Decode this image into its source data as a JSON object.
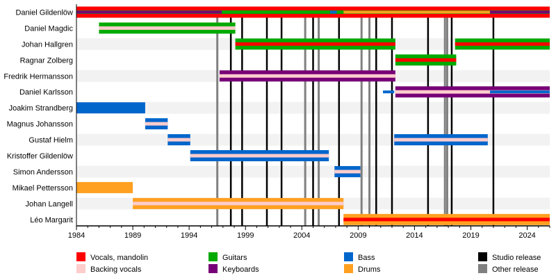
{
  "chart_data": {
    "type": "timeline",
    "xlim": [
      1984,
      2026.0
    ],
    "xticks": [
      1984,
      1989,
      1994,
      1999,
      2004,
      2009,
      2014,
      2019,
      2024
    ],
    "colors": {
      "vocals": "#ff0000",
      "backing": "#ffcccc",
      "guitars": "#00aa00",
      "keyboards": "#770077",
      "bass": "#0066cc",
      "drums": "#ffa020",
      "studio": "#000000",
      "other": "#808080"
    },
    "members": [
      {
        "name": "Daniel Gildenlöw",
        "bars": [
          {
            "from": 1984,
            "to": 2026,
            "main": "vocals",
            "inner": "guitars"
          },
          {
            "from": 1984,
            "to": 1996.9,
            "thin": "keyboards"
          },
          {
            "from": 2006.5,
            "to": 2007.1,
            "thin": "bass"
          },
          {
            "from": 2007.7,
            "to": 2020.7,
            "thin": "drums"
          },
          {
            "from": 2020.7,
            "to": 2026,
            "thin": "keyboards"
          }
        ]
      },
      {
        "name": "Daniel Magdic",
        "bars": [
          {
            "from": 1986.0,
            "to": 1998.1,
            "main": "guitars",
            "inner": "backing"
          }
        ]
      },
      {
        "name": "Johan Hallgren",
        "bars": [
          {
            "from": 1998.1,
            "to": 2012.3,
            "main": "guitars",
            "inner": "vocals"
          },
          {
            "from": 2017.6,
            "to": 2026,
            "main": "guitars",
            "inner": "vocals"
          }
        ]
      },
      {
        "name": "Ragnar Zolberg",
        "bars": [
          {
            "from": 2012.3,
            "to": 2017.7,
            "main": "guitars",
            "inner": "vocals"
          }
        ]
      },
      {
        "name": "Fredrik Hermansson",
        "bars": [
          {
            "from": 1996.7,
            "to": 2012.3,
            "main": "keyboards",
            "inner": "backing"
          }
        ]
      },
      {
        "name": "Daniel Karlsson",
        "bars": [
          {
            "from": 2011.2,
            "to": 2012.2,
            "thin": "bass"
          },
          {
            "from": 2012.3,
            "to": 2026,
            "main": "keyboards",
            "inner": "backing"
          },
          {
            "from": 2020.7,
            "to": 2026,
            "thin": "bass"
          }
        ]
      },
      {
        "name": "Joakim Strandberg",
        "bars": [
          {
            "from": 1984,
            "to": 1990.1,
            "main": "bass"
          }
        ]
      },
      {
        "name": "Magnus Johansson",
        "bars": [
          {
            "from": 1990.1,
            "to": 1992.1,
            "main": "bass",
            "inner": "backing"
          }
        ]
      },
      {
        "name": "Gustaf Hielm",
        "bars": [
          {
            "from": 1992.1,
            "to": 1994.1,
            "main": "bass",
            "inner": "backing"
          },
          {
            "from": 2012.2,
            "to": 2020.5,
            "main": "bass",
            "inner": "backing"
          }
        ]
      },
      {
        "name": "Kristoffer Gildenlöw",
        "bars": [
          {
            "from": 1994.1,
            "to": 2006.4,
            "main": "bass",
            "inner": "backing"
          }
        ]
      },
      {
        "name": "Simon Andersson",
        "bars": [
          {
            "from": 2006.9,
            "to": 2009.2,
            "main": "bass",
            "inner": "backing"
          }
        ]
      },
      {
        "name": "Mikael Pettersson",
        "bars": [
          {
            "from": 1984,
            "to": 1989.0,
            "main": "drums"
          }
        ]
      },
      {
        "name": "Johan Langell",
        "bars": [
          {
            "from": 1989.0,
            "to": 2007.7,
            "main": "drums",
            "inner": "backing"
          }
        ]
      },
      {
        "name": "Léo Margarit",
        "bars": [
          {
            "from": 2007.7,
            "to": 2026,
            "main": "drums",
            "inner": "vocals"
          }
        ]
      }
    ],
    "studio_releases": [
      1997.7,
      1998.7,
      2000.9,
      2002.2,
      2005.0,
      2007.3,
      2010.6,
      2012.0,
      2015.2,
      2017.3,
      2021.0
    ],
    "other_releases": [
      1996.5,
      2004.3,
      2005.5,
      2009.3,
      2010.0,
      2016.7,
      2016.9
    ],
    "legend": [
      {
        "key": "vocals",
        "label": "Vocals, mandolin"
      },
      {
        "key": "backing",
        "label": "Backing vocals"
      },
      {
        "key": "guitars",
        "label": "Guitars"
      },
      {
        "key": "keyboards",
        "label": "Keyboards"
      },
      {
        "key": "bass",
        "label": "Bass"
      },
      {
        "key": "drums",
        "label": "Drums"
      },
      {
        "key": "studio",
        "label": "Studio release"
      },
      {
        "key": "other",
        "label": "Other release"
      }
    ],
    "legend_position": "bottom"
  }
}
